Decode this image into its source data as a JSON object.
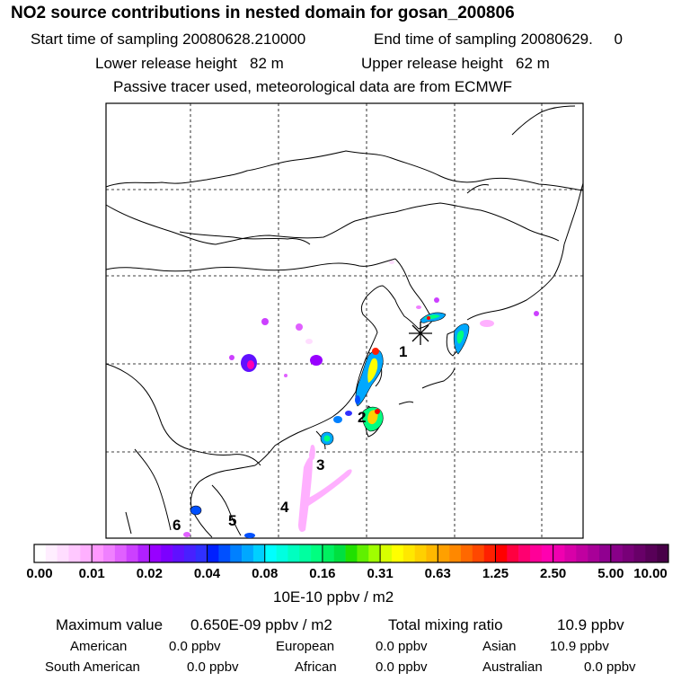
{
  "header": {
    "title": "NO2 source contributions in nested domain for gosan_200806",
    "start_time": "Start time of sampling 20080628.210000",
    "end_time": "End time of sampling 20080629.     0",
    "lower_release": "Lower release height   82 m",
    "upper_release": "Upper release height   62 m",
    "tracer_note": "Passive tracer used, meteorological data are from ECMWF"
  },
  "chart_data": {
    "type": "heatmap",
    "title": "NO2 source contributions in nested domain for gosan_200806",
    "colorbar": {
      "ticks": [
        "0.00",
        "0.01",
        "0.02",
        "0.04",
        "0.08",
        "0.16",
        "0.31",
        "0.63",
        "1.25",
        "2.50",
        "5.00",
        "10.00"
      ],
      "unit_label": "10E-10 ppbv / m2",
      "segment_colors": [
        [
          "#ffffff",
          "#ffeeff",
          "#ffddff",
          "#ffc8ff",
          "#ffb0ff"
        ],
        [
          "#ff98ff",
          "#f080ff",
          "#e060ff",
          "#cc40ff",
          "#b020ff"
        ],
        [
          "#9800ff",
          "#7c00ff",
          "#6010ff",
          "#4820ff",
          "#3030ff"
        ],
        [
          "#0020ff",
          "#0050ff",
          "#0080ff",
          "#00a8ff",
          "#00d0ff"
        ],
        [
          "#00ffff",
          "#00ffe0",
          "#00ffc0",
          "#00ffa0",
          "#00ff80"
        ],
        [
          "#00f060",
          "#00e040",
          "#20e000",
          "#60f000",
          "#a0ff00"
        ],
        [
          "#d8ff00",
          "#ffff00",
          "#ffe800",
          "#ffd000",
          "#ffb800"
        ],
        [
          "#ffa000",
          "#ff8800",
          "#ff6800",
          "#ff4800",
          "#ff2000"
        ],
        [
          "#ff0000",
          "#ff0040",
          "#ff0070",
          "#ff0098",
          "#ff00b0"
        ],
        [
          "#f000b0",
          "#d800a8",
          "#c000a0",
          "#a80098",
          "#900090"
        ],
        [
          "#880088",
          "#780078",
          "#680068",
          "#580058",
          "#480048"
        ]
      ]
    },
    "receptor": {
      "name": "gosan",
      "marker": "asterisk"
    },
    "region_labels": [
      "1",
      "2",
      "3",
      "4",
      "5",
      "6"
    ],
    "max_value": "0.650E-09 ppbv / m2",
    "total_mixing_ratio": "10.9 ppbv"
  },
  "summary": {
    "max_label": "Maximum value",
    "max_value": "0.650E-09 ppbv / m2",
    "total_label": "Total mixing ratio",
    "total_value": "10.9 ppbv"
  },
  "contributions": [
    {
      "region": "American",
      "value": "0.0 ppbv"
    },
    {
      "region": "European",
      "value": "0.0 ppbv"
    },
    {
      "region": "Asian",
      "value": "10.9 ppbv"
    },
    {
      "region": "South American",
      "value": "0.0 ppbv"
    },
    {
      "region": "African",
      "value": "0.0 ppbv"
    },
    {
      "region": "Australian",
      "value": "0.0 ppbv"
    }
  ]
}
